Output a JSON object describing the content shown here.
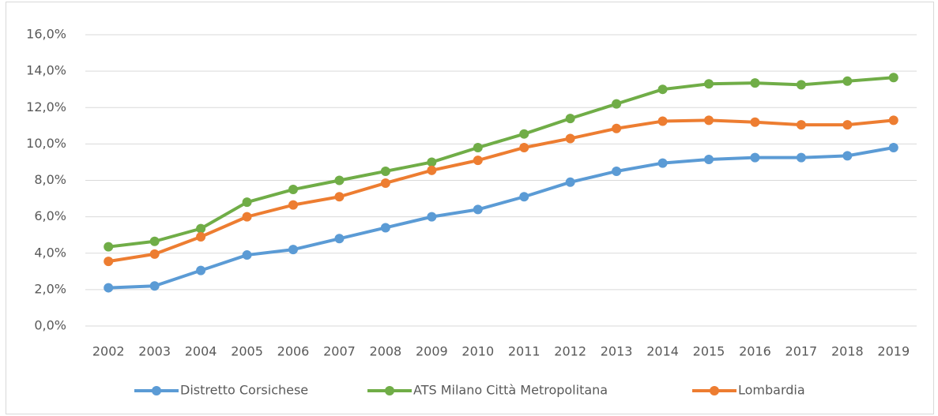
{
  "chart_data": {
    "type": "line",
    "categories": [
      "2002",
      "2003",
      "2004",
      "2005",
      "2006",
      "2007",
      "2008",
      "2009",
      "2010",
      "2011",
      "2012",
      "2013",
      "2014",
      "2015",
      "2016",
      "2017",
      "2018",
      "2019"
    ],
    "series": [
      {
        "name": "Distretto Corsichese",
        "color": "#5b9bd5",
        "values": [
          2.1,
          2.2,
          3.05,
          3.9,
          4.2,
          4.8,
          5.4,
          6.0,
          6.4,
          7.1,
          7.9,
          8.5,
          8.95,
          9.15,
          9.25,
          9.25,
          9.35,
          9.8
        ]
      },
      {
        "name": "ATS Milano Città Metropolitana",
        "color": "#70ad47",
        "values": [
          4.35,
          4.65,
          5.35,
          6.8,
          7.5,
          8.0,
          8.5,
          9.0,
          9.8,
          10.55,
          11.4,
          12.2,
          13.0,
          13.3,
          13.35,
          13.25,
          13.45,
          13.65
        ]
      },
      {
        "name": "Lombardia",
        "color": "#ed7d31",
        "values": [
          3.55,
          3.95,
          4.9,
          6.0,
          6.65,
          7.1,
          7.85,
          8.55,
          9.1,
          9.8,
          10.3,
          10.85,
          11.25,
          11.3,
          11.2,
          11.05,
          11.05,
          11.3
        ]
      }
    ],
    "ylim": [
      0,
      16
    ],
    "yticks": [
      {
        "value": 0,
        "label": "0,0%"
      },
      {
        "value": 2,
        "label": "2,0%"
      },
      {
        "value": 4,
        "label": "4,0%"
      },
      {
        "value": 6,
        "label": "6,0%"
      },
      {
        "value": 8,
        "label": "8,0%"
      },
      {
        "value": 10,
        "label": "10,0%"
      },
      {
        "value": 12,
        "label": "12,0%"
      },
      {
        "value": 14,
        "label": "14,0%"
      },
      {
        "value": 16,
        "label": "16,0%"
      }
    ],
    "grid": true,
    "legend": "bottom"
  }
}
